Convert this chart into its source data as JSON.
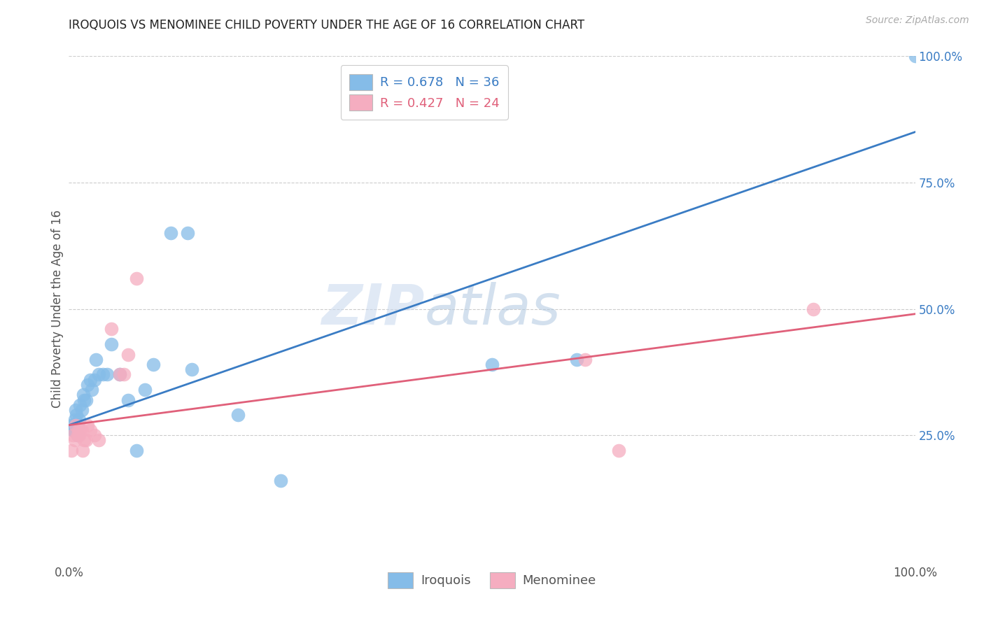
{
  "title": "IROQUOIS VS MENOMINEE CHILD POVERTY UNDER THE AGE OF 16 CORRELATION CHART",
  "source": "Source: ZipAtlas.com",
  "ylabel": "Child Poverty Under the Age of 16",
  "xlim": [
    0,
    1.0
  ],
  "ylim": [
    0,
    1.0
  ],
  "xticks": [
    0.0,
    0.25,
    0.5,
    0.75,
    1.0
  ],
  "xtick_labels": [
    "0.0%",
    "",
    "",
    "",
    "100.0%"
  ],
  "ytick_labels": [
    "25.0%",
    "50.0%",
    "75.0%",
    "100.0%"
  ],
  "yticks": [
    0.25,
    0.5,
    0.75,
    1.0
  ],
  "iroquois_color": "#85bce8",
  "menominee_color": "#f5adc0",
  "iroquois_line_color": "#3a7cc4",
  "menominee_line_color": "#e0607a",
  "iroquois_R": "0.678",
  "iroquois_N": "36",
  "menominee_R": "0.427",
  "menominee_N": "24",
  "watermark_zip": "ZIP",
  "watermark_atlas": "atlas",
  "background_color": "#ffffff",
  "grid_color": "#cccccc",
  "blue_line_x0": 0.0,
  "blue_line_y0": 0.27,
  "blue_line_x1": 1.0,
  "blue_line_y1": 0.85,
  "pink_line_x0": 0.0,
  "pink_line_y0": 0.27,
  "pink_line_x1": 1.0,
  "pink_line_y1": 0.49,
  "iroquois_x": [
    0.003,
    0.005,
    0.006,
    0.007,
    0.008,
    0.009,
    0.01,
    0.01,
    0.012,
    0.013,
    0.015,
    0.017,
    0.018,
    0.02,
    0.022,
    0.025,
    0.027,
    0.03,
    0.032,
    0.035,
    0.04,
    0.045,
    0.05,
    0.06,
    0.07,
    0.08,
    0.09,
    0.1,
    0.12,
    0.14,
    0.145,
    0.2,
    0.25,
    0.5,
    0.6,
    1.0
  ],
  "iroquois_y": [
    0.27,
    0.26,
    0.26,
    0.28,
    0.3,
    0.29,
    0.25,
    0.27,
    0.28,
    0.31,
    0.3,
    0.33,
    0.32,
    0.32,
    0.35,
    0.36,
    0.34,
    0.36,
    0.4,
    0.37,
    0.37,
    0.37,
    0.43,
    0.37,
    0.32,
    0.22,
    0.34,
    0.39,
    0.65,
    0.65,
    0.38,
    0.29,
    0.16,
    0.39,
    0.4,
    1.0
  ],
  "menominee_x": [
    0.003,
    0.005,
    0.007,
    0.008,
    0.01,
    0.011,
    0.012,
    0.013,
    0.015,
    0.016,
    0.018,
    0.02,
    0.022,
    0.025,
    0.03,
    0.035,
    0.05,
    0.06,
    0.065,
    0.07,
    0.08,
    0.61,
    0.65,
    0.88
  ],
  "menominee_y": [
    0.22,
    0.25,
    0.24,
    0.27,
    0.25,
    0.26,
    0.25,
    0.26,
    0.26,
    0.22,
    0.24,
    0.24,
    0.27,
    0.26,
    0.25,
    0.24,
    0.46,
    0.37,
    0.37,
    0.41,
    0.56,
    0.4,
    0.22,
    0.5
  ]
}
